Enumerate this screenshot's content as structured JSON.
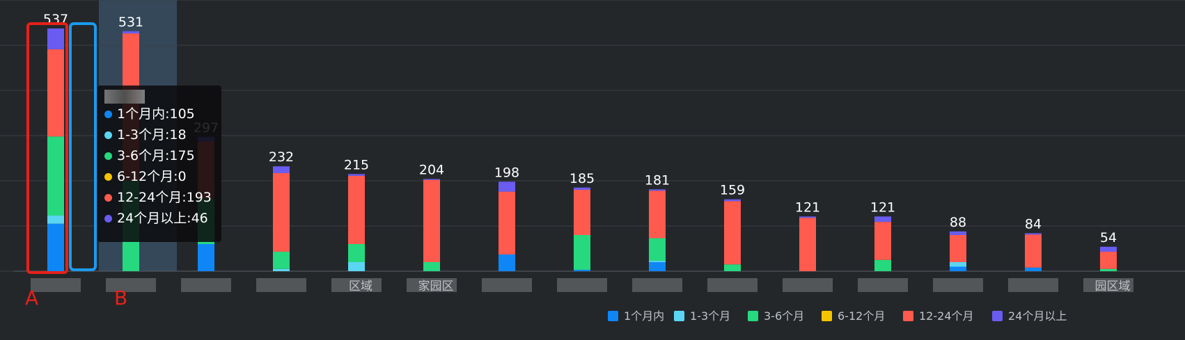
{
  "colors": {
    "background": "#24272a",
    "grid": "#3a3f44",
    "highlight_band": "#34485a",
    "annotation_red": "#e8201a",
    "annotation_blue": "#1a9bf0",
    "label_text": "#ffffff",
    "legend_text": "#bfc4c9"
  },
  "annotations": {
    "box_a_label": "A",
    "box_b_label": "B"
  },
  "tooltip": {
    "rows": [
      {
        "text": "1个月内:105",
        "color": "#0f86f5",
        "icon": "dot-icon"
      },
      {
        "text": "1-3个月:18",
        "color": "#5bd6f2",
        "icon": "dot-icon"
      },
      {
        "text": "3-6个月:175",
        "color": "#26d97f",
        "icon": "dot-icon"
      },
      {
        "text": "6-12个月:0",
        "color": "#f5c400",
        "icon": "dot-icon"
      },
      {
        "text": "12-24个月:193",
        "color": "#ff5a4e",
        "icon": "dot-icon"
      },
      {
        "text": "24个月以上:46",
        "color": "#6a5cf0",
        "icon": "dot-icon"
      }
    ]
  },
  "chart_data": {
    "type": "bar",
    "stacked": true,
    "ylim": [
      0,
      600
    ],
    "grid": true,
    "legend_position": "bottom-right",
    "highlighted_index": 1,
    "totals": [
      537,
      531,
      297,
      232,
      215,
      204,
      198,
      185,
      181,
      159,
      121,
      121,
      88,
      84,
      54
    ],
    "partial_category_labels": [
      {
        "index": 4,
        "text": "区域"
      },
      {
        "index": 5,
        "text": "家园区"
      },
      {
        "index": 14,
        "text": "园区域"
      }
    ],
    "series": [
      {
        "name": "1个月内",
        "color": "#0f86f5",
        "values": [
          105,
          0,
          60,
          0,
          0,
          0,
          37,
          3,
          20,
          0,
          0,
          0,
          10,
          8,
          0
        ]
      },
      {
        "name": "1-3个月",
        "color": "#5bd6f2",
        "values": [
          18,
          0,
          0,
          5,
          20,
          0,
          0,
          0,
          3,
          0,
          0,
          0,
          10,
          0,
          0
        ]
      },
      {
        "name": "3-6个月",
        "color": "#26d97f",
        "values": [
          175,
          200,
          100,
          38,
          40,
          20,
          0,
          77,
          50,
          15,
          0,
          25,
          0,
          0,
          5
        ]
      },
      {
        "name": "6-12个月",
        "color": "#f5c400",
        "values": [
          0,
          0,
          0,
          0,
          0,
          0,
          0,
          0,
          0,
          0,
          0,
          0,
          0,
          0,
          0
        ]
      },
      {
        "name": "12-24个月",
        "color": "#ff5a4e",
        "values": [
          193,
          326,
          127,
          174,
          151,
          182,
          139,
          100,
          105,
          140,
          118,
          84,
          60,
          73,
          38
        ]
      },
      {
        "name": "24个月以上",
        "color": "#6a5cf0",
        "values": [
          46,
          5,
          10,
          15,
          4,
          2,
          22,
          5,
          3,
          4,
          3,
          12,
          8,
          3,
          11
        ]
      }
    ]
  }
}
